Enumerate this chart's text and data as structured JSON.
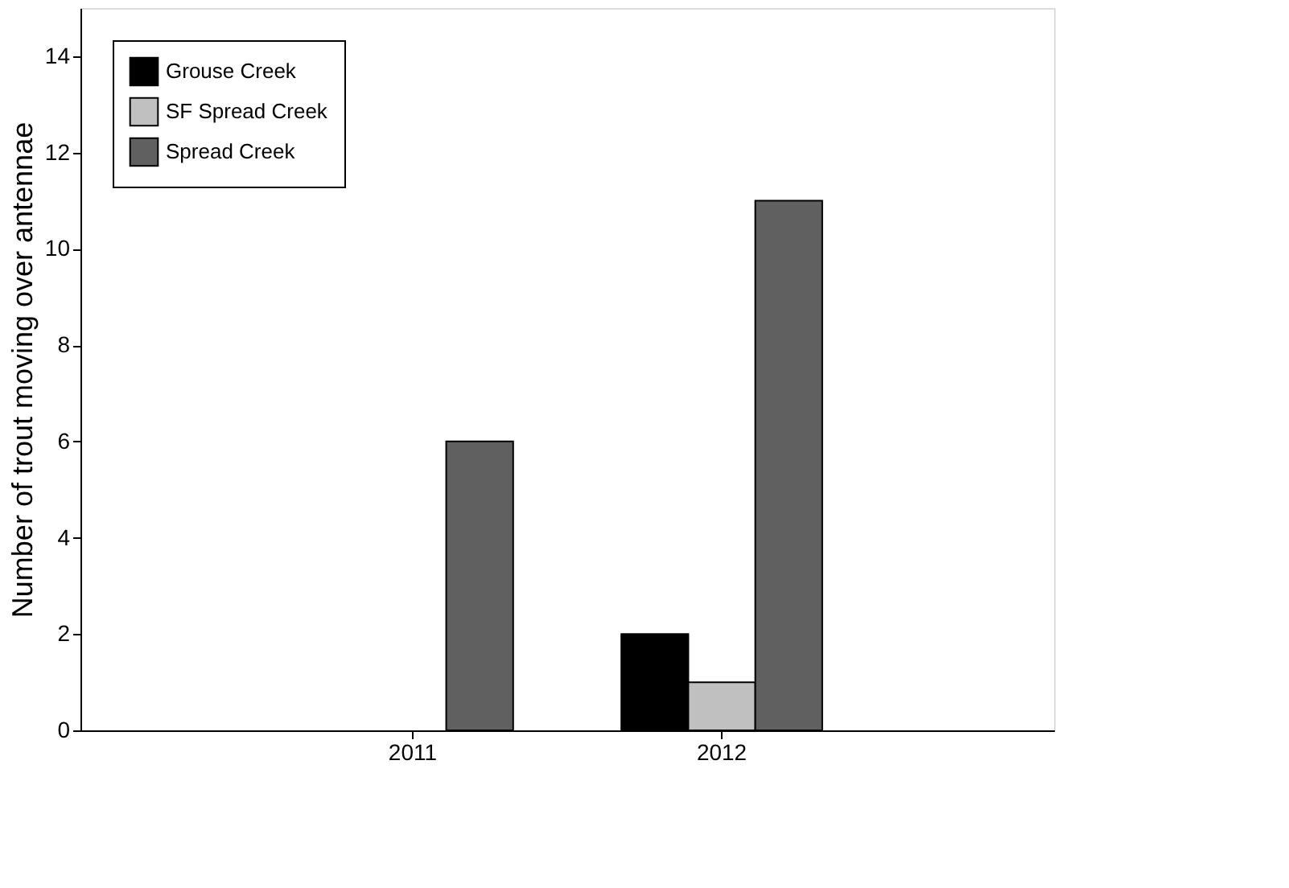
{
  "chart_data": {
    "type": "bar",
    "ylabel": "Number of trout moving over antennae",
    "categories": [
      "2011",
      "2012"
    ],
    "series": [
      {
        "name": "Grouse Creek",
        "color": "#000000",
        "values": [
          null,
          2
        ]
      },
      {
        "name": "SF Spread Creek",
        "color": "#c0c0c0",
        "values": [
          null,
          1
        ]
      },
      {
        "name": "Spread Creek",
        "color": "#606060",
        "values": [
          6,
          11
        ]
      }
    ],
    "ylim": [
      0,
      15
    ],
    "yticks": [
      0,
      2,
      4,
      6,
      8,
      10,
      12,
      14
    ],
    "grid": false,
    "legend": "top left"
  }
}
